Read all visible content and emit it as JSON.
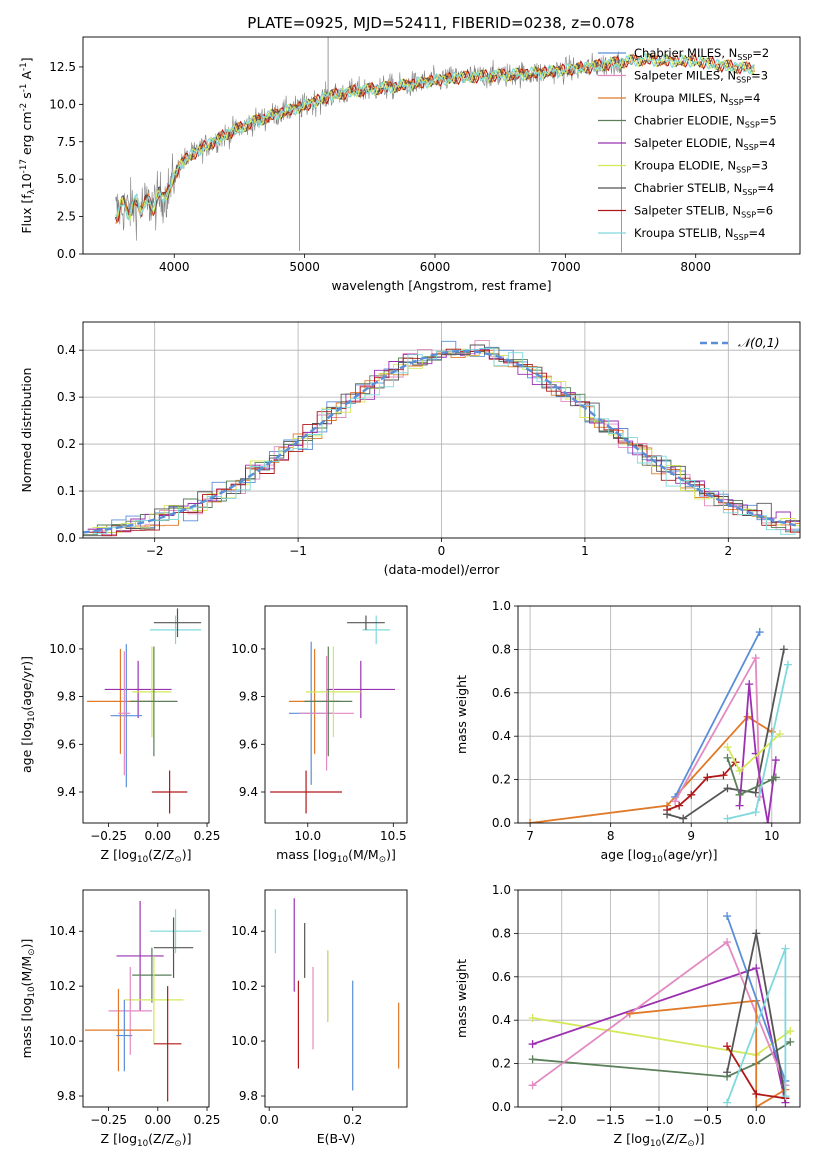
{
  "figure": {
    "title": "PLATE=0925, MJD=52411, FIBERID=0238, z=0.078"
  },
  "colors": {
    "chabrier_miles": "#5b8ed8",
    "salpeter_miles": "#e28ac2",
    "kroupa_miles": "#e07a28",
    "chabrier_elodie": "#5a7f5a",
    "salpeter_elodie": "#9b30b0",
    "kroupa_elodie": "#d4e85a",
    "chabrier_stelib": "#555555",
    "salpeter_stelib": "#b01818",
    "kroupa_stelib": "#7fd8dc",
    "data": "#808080",
    "gaussian": "#5b8ed8",
    "grid": "#b0b0b0"
  },
  "chart_data": [
    {
      "id": "spectrum",
      "type": "line",
      "xlabel": "wavelength [Angstrom, rest frame]",
      "ylabel": "Flux [f$_\\lambda$10$^{-17}$ erg cm$^{-2}$ s$^{-1}$ A$^{-1}$]",
      "xlim": [
        3300,
        8800
      ],
      "ylim": [
        0,
        14.5
      ],
      "xticks": [
        4000,
        5000,
        6000,
        7000,
        8000
      ],
      "yticks": [
        0.0,
        2.5,
        5.0,
        7.5,
        10.0,
        12.5
      ],
      "xticklabels": [
        "4000",
        "5000",
        "6000",
        "7000",
        "8000"
      ],
      "yticklabels": [
        "0.0",
        "2.5",
        "5.0",
        "7.5",
        "10.0",
        "12.5"
      ],
      "grid": false,
      "legend_position": "top-right",
      "legend": [
        {
          "key": "chabrier_miles",
          "pre": "Chabrier MILES, N",
          "sub": "SSP",
          "post": "=2"
        },
        {
          "key": "salpeter_miles",
          "pre": "Salpeter MILES, N",
          "sub": "SSP",
          "post": "=3"
        },
        {
          "key": "kroupa_miles",
          "pre": "Kroupa MILES, N",
          "sub": "SSP",
          "post": "=4"
        },
        {
          "key": "chabrier_elodie",
          "pre": "Chabrier ELODIE, N",
          "sub": "SSP",
          "post": "=5"
        },
        {
          "key": "salpeter_elodie",
          "pre": "Salpeter ELODIE, N",
          "sub": "SSP",
          "post": "=4"
        },
        {
          "key": "kroupa_elodie",
          "pre": "Kroupa ELODIE, N",
          "sub": "SSP",
          "post": "=3"
        },
        {
          "key": "chabrier_stelib",
          "pre": "Chabrier STELIB, N",
          "sub": "SSP",
          "post": "=4"
        },
        {
          "key": "salpeter_stelib",
          "pre": "Salpeter STELIB, N",
          "sub": "SSP",
          "post": "=6"
        },
        {
          "key": "kroupa_stelib",
          "pre": "Kroupa STELIB, N",
          "sub": "SSP",
          "post": "=4"
        }
      ],
      "continuum": {
        "x": [
          3550,
          3700,
          3850,
          3950,
          4050,
          4200,
          4400,
          4600,
          4800,
          5000,
          5200,
          5400,
          5600,
          5800,
          6000,
          6200,
          6400,
          6600,
          6800,
          7000,
          7200,
          7400,
          7600,
          7800,
          8000,
          8200,
          8400
        ],
        "y": [
          2.9,
          3.2,
          3.4,
          4.1,
          6.1,
          7.0,
          8.0,
          8.8,
          9.4,
          9.9,
          10.6,
          10.9,
          11.1,
          11.3,
          11.6,
          11.8,
          11.9,
          12.0,
          12.1,
          12.3,
          12.5,
          12.8,
          13.0,
          12.9,
          12.9,
          12.6,
          12.4
        ]
      }
    },
    {
      "id": "residuals",
      "type": "histogram",
      "xlabel": "(data-model)/error",
      "ylabel": "Normed distribution",
      "xlim": [
        -2.5,
        2.5
      ],
      "ylim": [
        0,
        0.46
      ],
      "xticks": [
        -2,
        -1,
        0,
        1,
        2
      ],
      "yticks": [
        0.0,
        0.1,
        0.2,
        0.3,
        0.4
      ],
      "xticklabels": [
        "−2",
        "−1",
        "0",
        "1",
        "2"
      ],
      "yticklabels": [
        "0.0",
        "0.1",
        "0.2",
        "0.3",
        "0.4"
      ],
      "grid": true,
      "legend_position": "top-right",
      "legend": [
        {
          "label": "$\\mathcal{N}(0,1)$",
          "key": "gaussian"
        }
      ],
      "gaussian": {
        "mean": 0.15,
        "sigma": 1,
        "peak": 0.398
      },
      "bin_width": 0.1
    },
    {
      "id": "z_vs_age",
      "type": "errorbar",
      "xlabel": "Z [log$_{10}$(Z/Z$_\\odot$)]",
      "ylabel": "age  [log$_{10}$(age/yr)]",
      "xlim": [
        -0.38,
        0.26
      ],
      "ylim": [
        9.27,
        10.18
      ],
      "xticks": [
        -0.25,
        0.0,
        0.25
      ],
      "yticks": [
        9.4,
        9.6,
        9.8,
        10.0
      ],
      "xticklabels": [
        "−0.25",
        "0.00",
        "0.25"
      ],
      "yticklabels": [
        "9.4",
        "9.6",
        "9.8",
        "10.0"
      ],
      "grid": false,
      "points": [
        {
          "key": "kroupa_stelib",
          "x": 0.09,
          "xerr": 0.13,
          "y": 10.08,
          "yerr": 0.06
        },
        {
          "key": "chabrier_stelib",
          "x": 0.1,
          "xerr": 0.12,
          "y": 10.11,
          "yerr": 0.06
        },
        {
          "key": "kroupa_miles",
          "x": -0.19,
          "xerr": 0.17,
          "y": 9.78,
          "yerr": 0.22
        },
        {
          "key": "salpeter_elodie",
          "x": -0.1,
          "xerr": 0.17,
          "y": 9.83,
          "yerr": 0.12
        },
        {
          "key": "chabrier_miles",
          "x": -0.16,
          "xerr": 0.08,
          "y": 9.72,
          "yerr": 0.3
        },
        {
          "key": "salpeter_miles",
          "x": -0.17,
          "xerr": 0.03,
          "y": 9.73,
          "yerr": 0.26
        },
        {
          "key": "salpeter_stelib",
          "x": 0.06,
          "xerr": 0.09,
          "y": 9.4,
          "yerr": 0.09
        },
        {
          "key": "kroupa_elodie",
          "x": -0.03,
          "xerr": 0.1,
          "y": 9.82,
          "yerr": 0.19
        },
        {
          "key": "chabrier_elodie",
          "x": -0.02,
          "xerr": 0.12,
          "y": 9.78,
          "yerr": 0.23
        }
      ]
    },
    {
      "id": "mass_vs_age",
      "type": "errorbar",
      "xlabel": "mass [log$_{10}$(M/M$_\\odot$)]",
      "ylabel": "",
      "xlim": [
        9.75,
        10.58
      ],
      "ylim": [
        9.27,
        10.18
      ],
      "xticks": [
        10.0,
        10.5
      ],
      "yticks": [
        9.4,
        9.6,
        9.8,
        10.0
      ],
      "xticklabels": [
        "10.0",
        "10.5"
      ],
      "yticklabels": [
        "9.4",
        "9.6",
        "9.8",
        "10.0"
      ],
      "grid": false,
      "points": [
        {
          "key": "kroupa_stelib",
          "x": 10.4,
          "xerr": 0.08,
          "y": 10.08,
          "yerr": 0.06
        },
        {
          "key": "chabrier_stelib",
          "x": 10.34,
          "xerr": 0.11,
          "y": 10.11,
          "yerr": 0.03
        },
        {
          "key": "kroupa_miles",
          "x": 10.04,
          "xerr": 0.15,
          "y": 9.78,
          "yerr": 0.22
        },
        {
          "key": "salpeter_elodie",
          "x": 10.31,
          "xerr": 0.2,
          "y": 9.83,
          "yerr": 0.12
        },
        {
          "key": "chabrier_miles",
          "x": 10.02,
          "xerr": 0.13,
          "y": 9.73,
          "yerr": 0.3
        },
        {
          "key": "salpeter_miles",
          "x": 10.11,
          "xerr": 0.16,
          "y": 9.73,
          "yerr": 0.24
        },
        {
          "key": "salpeter_stelib",
          "x": 9.99,
          "xerr": 0.21,
          "y": 9.4,
          "yerr": 0.09
        },
        {
          "key": "kroupa_elodie",
          "x": 10.15,
          "xerr": 0.16,
          "y": 9.82,
          "yerr": 0.19
        },
        {
          "key": "chabrier_elodie",
          "x": 10.12,
          "xerr": 0.14,
          "y": 9.78,
          "yerr": 0.23
        }
      ]
    },
    {
      "id": "age_vs_weight",
      "type": "line",
      "xlabel": "age  [log$_{10}$(age/yr)]",
      "ylabel": "mass weight",
      "xlim": [
        6.85,
        10.35
      ],
      "ylim": [
        0,
        1.0
      ],
      "xticks": [
        7,
        8,
        9,
        10
      ],
      "yticks": [
        0.0,
        0.2,
        0.4,
        0.6,
        0.8,
        1.0
      ],
      "xticklabels": [
        "7",
        "8",
        "9",
        "10"
      ],
      "yticklabels": [
        "0.0",
        "0.2",
        "0.4",
        "0.6",
        "0.8",
        "1.0"
      ],
      "grid": true,
      "series": [
        {
          "key": "kroupa_miles",
          "x": [
            7.0,
            8.7,
            9.7,
            10.0
          ],
          "y": [
            0.0,
            0.08,
            0.49,
            0.42
          ]
        },
        {
          "key": "salpeter_stelib",
          "x": [
            8.7,
            8.85,
            9.0,
            9.2,
            9.4,
            9.55
          ],
          "y": [
            0.06,
            0.08,
            0.13,
            0.21,
            0.22,
            0.28
          ]
        },
        {
          "key": "chabrier_stelib",
          "x": [
            8.7,
            8.9,
            9.45,
            9.8,
            10.15
          ],
          "y": [
            0.04,
            0.02,
            0.16,
            0.14,
            0.8
          ]
        },
        {
          "key": "chabrier_miles",
          "x": [
            8.8,
            9.85
          ],
          "y": [
            0.12,
            0.88
          ]
        },
        {
          "key": "salpeter_miles",
          "x": [
            8.8,
            9.8,
            9.85
          ],
          "y": [
            0.1,
            0.76,
            0.12
          ]
        },
        {
          "key": "salpeter_elodie",
          "x": [
            9.6,
            9.72,
            9.8,
            9.95,
            10.05
          ],
          "y": [
            0.08,
            0.64,
            0.32,
            0.0,
            0.29
          ]
        },
        {
          "key": "kroupa_elodie",
          "x": [
            9.45,
            9.6,
            10.1
          ],
          "y": [
            0.35,
            0.24,
            0.41
          ]
        },
        {
          "key": "chabrier_elodie",
          "x": [
            9.45,
            9.6,
            10.0,
            10.05
          ],
          "y": [
            0.3,
            0.13,
            0.2,
            0.21
          ]
        },
        {
          "key": "kroupa_stelib",
          "x": [
            9.45,
            9.8,
            10.2
          ],
          "y": [
            0.02,
            0.05,
            0.73
          ]
        }
      ]
    },
    {
      "id": "z_vs_mass",
      "type": "errorbar",
      "xlabel": "Z [log$_{10}$(Z/Z$_\\odot$)]",
      "ylabel": "mass [log$_{10}$(M/M$_\\odot$)]",
      "xlim": [
        -0.38,
        0.26
      ],
      "ylim": [
        9.76,
        10.55
      ],
      "xticks": [
        -0.25,
        0.0,
        0.25
      ],
      "yticks": [
        9.8,
        10.0,
        10.2,
        10.4
      ],
      "xticklabels": [
        "−0.25",
        "0.00",
        "0.25"
      ],
      "yticklabels": [
        "9.8",
        "10.0",
        "10.2",
        "10.4"
      ],
      "grid": false,
      "points": [
        {
          "key": "kroupa_stelib",
          "x": 0.09,
          "xerr": 0.13,
          "y": 10.4,
          "yerr": 0.08
        },
        {
          "key": "chabrier_stelib",
          "x": 0.08,
          "xerr": 0.1,
          "y": 10.34,
          "yerr": 0.11
        },
        {
          "key": "salpeter_elodie",
          "x": -0.09,
          "xerr": 0.12,
          "y": 10.31,
          "yerr": 0.2
        },
        {
          "key": "chabrier_elodie",
          "x": -0.03,
          "xerr": 0.1,
          "y": 10.24,
          "yerr": 0.1
        },
        {
          "key": "kroupa_elodie",
          "x": -0.02,
          "xerr": 0.15,
          "y": 10.15,
          "yerr": 0.16
        },
        {
          "key": "salpeter_miles",
          "x": -0.14,
          "xerr": 0.11,
          "y": 10.11,
          "yerr": 0.16
        },
        {
          "key": "kroupa_miles",
          "x": -0.2,
          "xerr": 0.17,
          "y": 10.04,
          "yerr": 0.15
        },
        {
          "key": "chabrier_miles",
          "x": -0.17,
          "xerr": 0.04,
          "y": 10.02,
          "yerr": 0.13
        },
        {
          "key": "salpeter_stelib",
          "x": 0.05,
          "xerr": 0.07,
          "y": 9.99,
          "yerr": 0.21
        }
      ]
    },
    {
      "id": "ebv_vs_mass",
      "type": "errorbar",
      "xlabel": "E(B-V)",
      "ylabel": "",
      "xlim": [
        -0.01,
        0.33
      ],
      "ylim": [
        9.76,
        10.55
      ],
      "xticks": [
        0.0,
        0.2
      ],
      "yticks": [
        9.8,
        10.0,
        10.2,
        10.4
      ],
      "xticklabels": [
        "0.0",
        "0.2"
      ],
      "yticklabels": [
        "9.8",
        "10.0",
        "10.2",
        "10.4"
      ],
      "grid": false,
      "points": [
        {
          "key": "kroupa_stelib",
          "x": 0.015,
          "xerr": 0,
          "y": 10.4,
          "yerr": 0.08
        },
        {
          "key": "salpeter_elodie",
          "x": 0.06,
          "xerr": 0,
          "y": 10.35,
          "yerr": 0.17
        },
        {
          "key": "chabrier_stelib",
          "x": 0.085,
          "xerr": 0,
          "y": 10.33,
          "yerr": 0.1
        },
        {
          "key": "salpeter_stelib",
          "x": 0.07,
          "xerr": 0,
          "y": 10.06,
          "yerr": 0.16
        },
        {
          "key": "salpeter_miles",
          "x": 0.105,
          "xerr": 0,
          "y": 10.12,
          "yerr": 0.15
        },
        {
          "key": "chabrier_elodie",
          "x": 0.14,
          "xerr": 0,
          "y": 10.2,
          "yerr": 0.13
        },
        {
          "key": "kroupa_elodie",
          "x": 0.14,
          "xerr": 0,
          "y": 10.2,
          "yerr": 0.13
        },
        {
          "key": "chabrier_miles",
          "x": 0.2,
          "xerr": 0,
          "y": 10.02,
          "yerr": 0.2
        },
        {
          "key": "kroupa_miles",
          "x": 0.31,
          "xerr": 0,
          "y": 10.02,
          "yerr": 0.12
        }
      ]
    },
    {
      "id": "z_vs_weight",
      "type": "line",
      "xlabel": "Z [log$_{10}$(Z/Z$_\\odot$)]",
      "ylabel": "mass weight",
      "xlim": [
        -2.45,
        0.45
      ],
      "ylim": [
        0,
        1.0
      ],
      "xticks": [
        -2.0,
        -1.5,
        -1.0,
        -0.5,
        0.0
      ],
      "yticks": [
        0.0,
        0.2,
        0.4,
        0.6,
        0.8,
        1.0
      ],
      "xticklabels": [
        "−2.0",
        "−1.5",
        "−1.0",
        "−0.5",
        "0.0"
      ],
      "yticklabels": [
        "0.0",
        "0.2",
        "0.4",
        "0.6",
        "0.8",
        "1.0"
      ],
      "grid": true,
      "series": [
        {
          "key": "kroupa_elodie",
          "x": [
            -2.3,
            0.0,
            0.35
          ],
          "y": [
            0.41,
            0.24,
            0.35
          ]
        },
        {
          "key": "chabrier_elodie",
          "x": [
            -2.3,
            -0.3,
            0.0,
            0.35
          ],
          "y": [
            0.22,
            0.14,
            0.2,
            0.3
          ]
        },
        {
          "key": "salpeter_elodie",
          "x": [
            -2.3,
            0.0,
            0.3
          ],
          "y": [
            0.29,
            0.64,
            0.02
          ]
        },
        {
          "key": "salpeter_miles",
          "x": [
            -2.3,
            -0.3,
            0.3
          ],
          "y": [
            0.1,
            0.76,
            0.1
          ]
        },
        {
          "key": "kroupa_miles",
          "x": [
            -1.3,
            0.0,
            0.0,
            0.3
          ],
          "y": [
            0.43,
            0.49,
            0.0,
            0.08
          ]
        },
        {
          "key": "chabrier_miles",
          "x": [
            -0.3,
            0.3
          ],
          "y": [
            0.88,
            0.12
          ]
        },
        {
          "key": "chabrier_stelib",
          "x": [
            -0.3,
            0.0,
            0.3
          ],
          "y": [
            0.16,
            0.8,
            0.04
          ]
        },
        {
          "key": "salpeter_stelib",
          "x": [
            -0.3,
            0.0,
            0.3
          ],
          "y": [
            0.28,
            0.06,
            0.04
          ]
        },
        {
          "key": "kroupa_stelib",
          "x": [
            -0.3,
            0.3,
            0.3
          ],
          "y": [
            0.02,
            0.73,
            0.05
          ]
        }
      ]
    }
  ]
}
